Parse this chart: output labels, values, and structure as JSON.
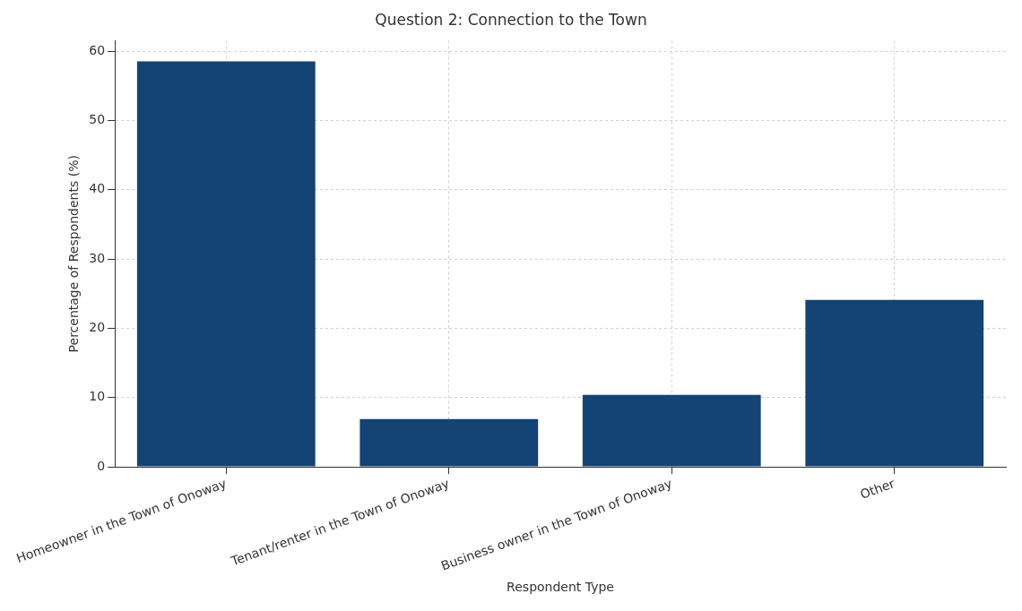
{
  "chart_data": {
    "type": "bar",
    "title": "Question 2: Connection to the Town",
    "xlabel": "Respondent Type",
    "ylabel": "Percentage of Respondents (%)",
    "categories": [
      "Homeowner in the Town of Onoway",
      "Tenant/renter in the Town of Onoway",
      "Business owner in the Town of Onoway",
      "Other"
    ],
    "values": [
      58.5,
      6.9,
      10.4,
      24.1
    ],
    "color": "#154373",
    "ylim": [
      0,
      61.5
    ],
    "yticks": [
      0,
      10,
      20,
      30,
      40,
      50,
      60
    ],
    "grid": true
  }
}
